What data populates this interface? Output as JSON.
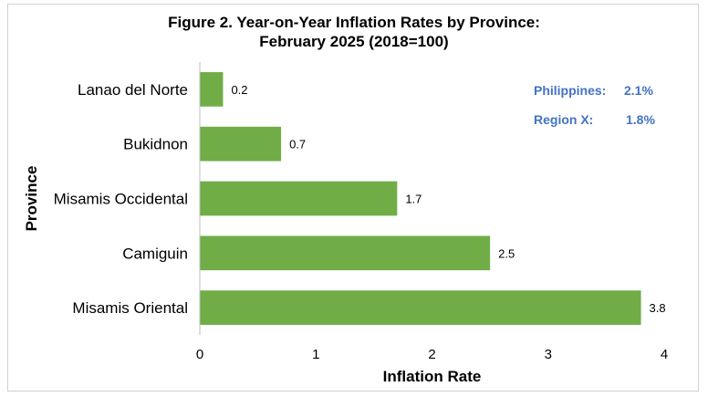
{
  "chart_data": {
    "type": "bar",
    "orientation": "horizontal",
    "title_line1": "Figure 2. Year-on-Year Inflation Rates by Province:",
    "title_line2": "February 2025 (2018=100)",
    "xlabel": "Inflation Rate",
    "ylabel": "Province",
    "xlim": [
      0,
      4
    ],
    "xticks": [
      "0",
      "1",
      "2",
      "3",
      "4"
    ],
    "categories": [
      "Lanao del Norte",
      "Bukidnon",
      "Misamis Occidental",
      "Camiguin",
      "Misamis Oriental"
    ],
    "values": [
      0.2,
      0.7,
      1.7,
      2.5,
      3.8
    ],
    "bar_color": "#70ad47",
    "grid": false,
    "notes": [
      {
        "label": "Philippines:",
        "value": "2.1%"
      },
      {
        "label": "Region X:",
        "value": "1.8%"
      }
    ],
    "note_color": "#4472c4"
  }
}
